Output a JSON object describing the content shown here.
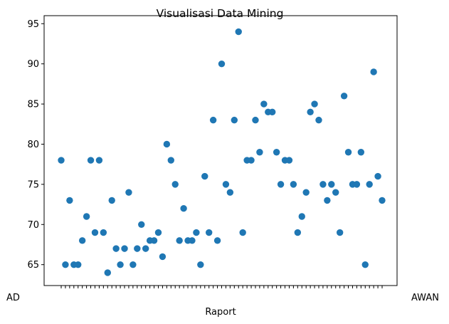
{
  "chart_data": {
    "type": "scatter",
    "title": "Visualisasi Data Mining",
    "xlabel": "Raport",
    "ylabel": "",
    "ylim": [
      62.4,
      96.0
    ],
    "yticks": [
      65,
      70,
      75,
      80,
      85,
      90,
      95
    ],
    "grid": false,
    "legend": "none",
    "point_color": "#1f77b4",
    "x_tick_labels_visible": {
      "left": "AD",
      "right": "AWAN"
    },
    "y": [
      78,
      65,
      73,
      65,
      65,
      68,
      71,
      78,
      69,
      78,
      69,
      64,
      73,
      67,
      65,
      67,
      74,
      65,
      67,
      70,
      67,
      68,
      68,
      69,
      66,
      80,
      78,
      75,
      68,
      72,
      68,
      68,
      69,
      65,
      76,
      69,
      83,
      68,
      90,
      75,
      74,
      83,
      94,
      69,
      78,
      78,
      83,
      79,
      85,
      84,
      84,
      79,
      75,
      78,
      78,
      75,
      69,
      71,
      74,
      84,
      85,
      83,
      75,
      73,
      75,
      74,
      69,
      86,
      79,
      75,
      75,
      79,
      65,
      75,
      89,
      76,
      73
    ]
  }
}
